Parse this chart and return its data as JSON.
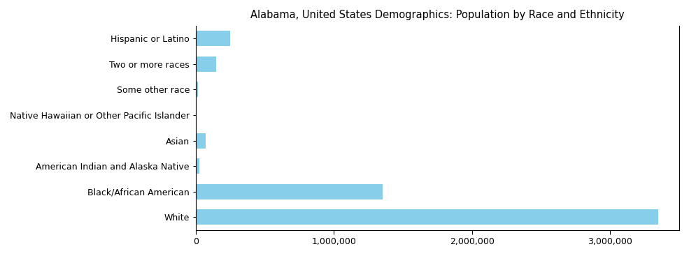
{
  "title": "Alabama, United States Demographics: Population by Race and Ethnicity",
  "categories": [
    "Hispanic or Latino",
    "Two or more races",
    "Some other race",
    "Native Hawaiian or Other Pacific Islander",
    "Asian",
    "American Indian and Alaska Native",
    "Black/African American",
    "White"
  ],
  "values": [
    250000,
    148000,
    14000,
    5000,
    72000,
    24000,
    1350000,
    3350000
  ],
  "bar_color": "#87ceeb",
  "xlim": [
    0,
    3500000
  ],
  "background_color": "#ffffff",
  "title_fontsize": 10.5,
  "tick_fontsize": 9,
  "xtick_labels": [
    "0",
    "1,000,000",
    "2,000,000",
    "3,000,000"
  ],
  "xtick_values": [
    0,
    1000000,
    2000000,
    3000000
  ]
}
